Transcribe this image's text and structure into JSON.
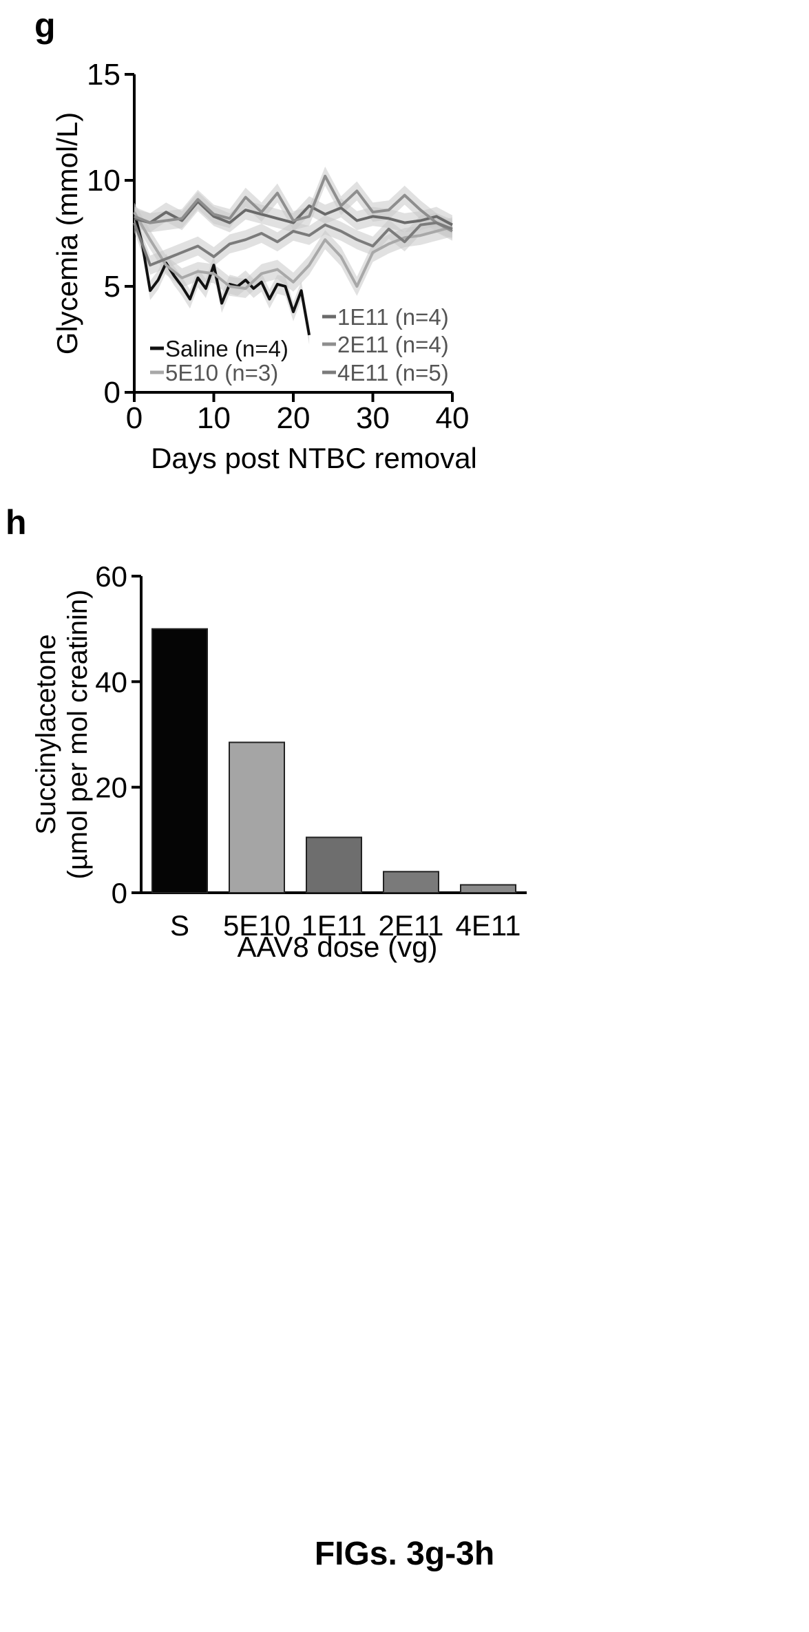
{
  "panels": [
    {
      "label": "g"
    },
    {
      "label": "h"
    }
  ],
  "caption": "FIGs. 3g-3h",
  "colors": {
    "saline": "#111111",
    "5E10": "#a8a8a8",
    "1E11": "#6a6a6a",
    "2E11": "#8e8e8e",
    "4E11": "#7b7b7b",
    "band": "#c8c8c8",
    "bar_S": "#050505",
    "bar_5E10": "#a5a5a5",
    "bar_1E11": "#6e6e6e",
    "bar_2E11": "#7a7a7a",
    "bar_4E11": "#8a8a8a"
  },
  "chart_data": [
    {
      "type": "line",
      "title": "",
      "xlabel": "Days post NTBC removal",
      "ylabel": "Glycemia (mmol/L)",
      "xlim": [
        0,
        40
      ],
      "ylim": [
        0,
        15
      ],
      "xticks": [
        "0",
        "10",
        "20",
        "30",
        "40"
      ],
      "yticks": [
        "0",
        "5",
        "10",
        "15"
      ],
      "legend": "bottom",
      "shaded_error_bands": true,
      "series": [
        {
          "name": "Saline (n=4)",
          "x": [
            0,
            1,
            2,
            3,
            4,
            5,
            6,
            7,
            8,
            9,
            10,
            11,
            12,
            13,
            14,
            15,
            16,
            17,
            18,
            19,
            20,
            21,
            22
          ],
          "y": [
            8.5,
            7.0,
            4.8,
            5.3,
            6.1,
            5.5,
            5.0,
            4.4,
            5.4,
            4.9,
            6.0,
            4.2,
            5.1,
            5.0,
            5.3,
            4.9,
            5.2,
            4.4,
            5.1,
            5.0,
            3.8,
            4.8,
            2.7
          ]
        },
        {
          "name": "5E10   (n=3)",
          "x": [
            0,
            2,
            4,
            6,
            8,
            10,
            12,
            14,
            16,
            18,
            20,
            22,
            24,
            26,
            28,
            30,
            32,
            34,
            36,
            38,
            40
          ],
          "y": [
            8.5,
            7.2,
            6.0,
            5.4,
            5.7,
            5.6,
            5.0,
            4.9,
            5.6,
            5.8,
            5.2,
            6.0,
            7.2,
            6.4,
            5.0,
            6.6,
            7.0,
            7.3,
            7.4,
            7.6,
            7.8
          ]
        },
        {
          "name": "1E11 (n=4)",
          "x": [
            0,
            2,
            4,
            6,
            8,
            10,
            12,
            14,
            16,
            18,
            20,
            22,
            24,
            26,
            28,
            30,
            32,
            34,
            36,
            38,
            40
          ],
          "y": [
            8.2,
            8.0,
            8.5,
            8.1,
            9.0,
            8.3,
            8.0,
            8.6,
            8.4,
            8.2,
            8.0,
            8.8,
            8.4,
            8.7,
            8.1,
            8.3,
            8.2,
            8.0,
            8.1,
            8.3,
            7.9
          ]
        },
        {
          "name": "2E11 (n=4)",
          "x": [
            0,
            2,
            4,
            6,
            8,
            10,
            12,
            14,
            16,
            18,
            20,
            22,
            24,
            26,
            28,
            30,
            32,
            34,
            36,
            38,
            40
          ],
          "y": [
            8.3,
            8.0,
            8.1,
            8.2,
            9.1,
            8.4,
            8.2,
            9.2,
            8.5,
            9.4,
            8.1,
            8.3,
            10.2,
            8.8,
            9.5,
            8.5,
            8.6,
            9.3,
            8.6,
            8.0,
            7.6
          ]
        },
        {
          "name": "4E11 (n=5)",
          "x": [
            0,
            2,
            4,
            6,
            8,
            10,
            12,
            14,
            16,
            18,
            20,
            22,
            24,
            26,
            28,
            30,
            32,
            34,
            36,
            38,
            40
          ],
          "y": [
            8.0,
            6.0,
            6.3,
            6.6,
            6.9,
            6.4,
            7.0,
            7.2,
            7.5,
            7.1,
            7.6,
            7.4,
            7.9,
            7.6,
            7.2,
            6.9,
            7.7,
            7.1,
            7.9,
            8.0,
            7.7
          ]
        }
      ]
    },
    {
      "type": "bar",
      "title": "",
      "xlabel": "AAV8 dose (vg)",
      "ylabel_line1": "Succinylacetone",
      "ylabel_line2": "(µmol per mol creatinin)",
      "ylim": [
        0,
        60
      ],
      "yticks": [
        "0",
        "20",
        "40",
        "60"
      ],
      "categories": [
        "S",
        "5E10",
        "1E11",
        "2E11",
        "4E11"
      ],
      "values": [
        50,
        28.5,
        10.5,
        4,
        1.5
      ]
    }
  ]
}
